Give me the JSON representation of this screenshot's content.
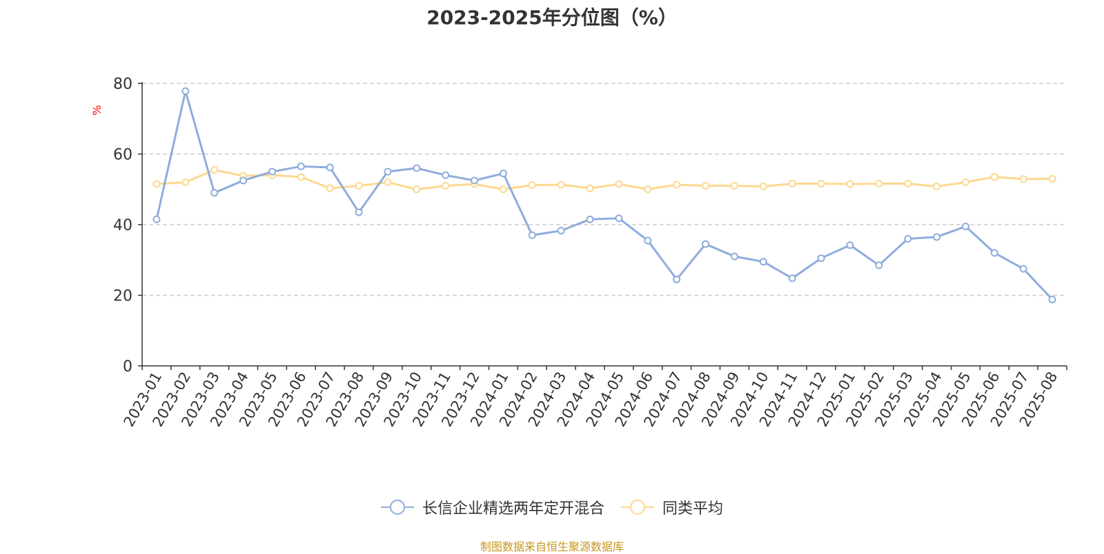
{
  "title": "2023-2025年分位图（%）",
  "source_note": "制图数据来自恒生聚源数据库",
  "colors": {
    "series_fund": "#8eacdc",
    "series_avg": "#fdd88f",
    "axis": "#333333",
    "grid": "#cccccc",
    "unit": "#ff0000",
    "source": "#c8961e"
  },
  "chart_data": {
    "type": "line",
    "title": "2023-2025年分位图（%）",
    "ylabel": "%",
    "xlabel": "",
    "ylim": [
      0,
      80
    ],
    "yticks": [
      0,
      20,
      40,
      60,
      80
    ],
    "grid": true,
    "legend_position": "bottom",
    "categories": [
      "2023-01",
      "2023-02",
      "2023-03",
      "2023-04",
      "2023-05",
      "2023-06",
      "2023-07",
      "2023-08",
      "2023-09",
      "2023-10",
      "2023-11",
      "2023-12",
      "2024-01",
      "2024-02",
      "2024-03",
      "2024-04",
      "2024-05",
      "2024-06",
      "2024-07",
      "2024-08",
      "2024-09",
      "2024-10",
      "2024-11",
      "2024-12",
      "2025-01",
      "2025-02",
      "2025-03",
      "2025-04",
      "2025-05",
      "2025-06",
      "2025-07",
      "2025-08"
    ],
    "series": [
      {
        "name": "长信企业精选两年定开混合",
        "color": "#8eacdc",
        "values": [
          41.5,
          77.8,
          49.0,
          52.5,
          55.0,
          56.5,
          56.2,
          43.5,
          55.0,
          56.0,
          54.0,
          52.5,
          54.5,
          37.0,
          38.3,
          41.5,
          41.8,
          35.5,
          24.5,
          34.5,
          31.0,
          29.5,
          24.8,
          30.5,
          34.2,
          28.5,
          36.0,
          36.5,
          39.5,
          32.0,
          27.5,
          18.8
        ]
      },
      {
        "name": "同类平均",
        "color": "#fdd88f",
        "values": [
          51.5,
          52.0,
          55.5,
          53.8,
          54.0,
          53.5,
          50.3,
          51.0,
          52.0,
          50.0,
          51.0,
          51.5,
          50.0,
          51.2,
          51.3,
          50.3,
          51.5,
          50.0,
          51.3,
          51.0,
          51.0,
          50.8,
          51.6,
          51.6,
          51.5,
          51.6,
          51.6,
          50.8,
          52.0,
          53.5,
          52.9,
          53.0
        ]
      }
    ]
  }
}
